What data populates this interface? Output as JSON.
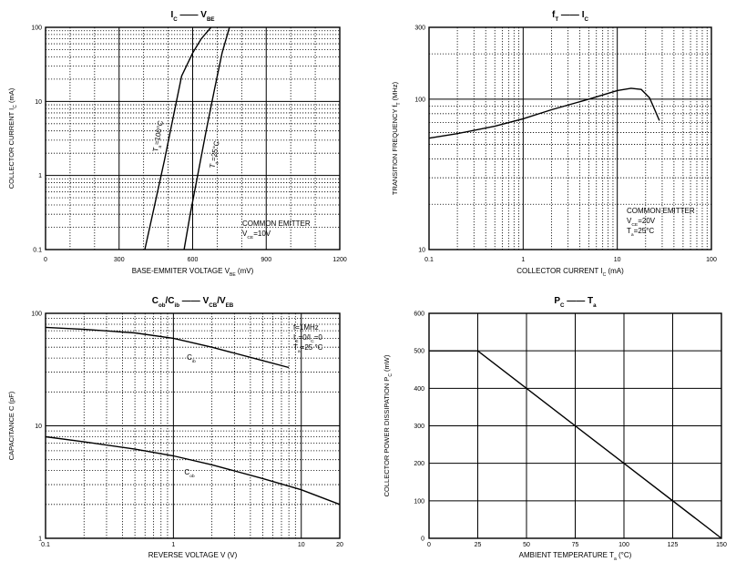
{
  "chart_data": [
    {
      "id": "ic_vbe",
      "type": "line",
      "title": [
        "I",
        "C",
        " —— V",
        "BE"
      ],
      "xlabel": "BASE-EMMITER VOLTAGE",
      "xlabel_symbol": [
        "V",
        "BE"
      ],
      "xlabel_unit": "(mV)",
      "ylabel": "COLLECTOR CURRENT",
      "ylabel_symbol": [
        "I",
        "C"
      ],
      "ylabel_unit": "(mA)",
      "x_scale": "linear",
      "y_scale": "log",
      "xlim": [
        0,
        1200
      ],
      "ylim": [
        0.1,
        100
      ],
      "x_ticks": [
        0,
        300,
        600,
        900,
        1200
      ],
      "x_tick_labels": [
        "0",
        "300",
        "600",
        "900",
        "1200"
      ],
      "y_ticks": [
        0.1,
        1,
        10,
        100
      ],
      "y_tick_labels": [
        "0.1",
        "1",
        "10",
        "100"
      ],
      "series": [
        {
          "name": "Ta=100°C",
          "label_parts": [
            "T",
            "a",
            "=100°C"
          ],
          "x": [
            405,
            445,
            485,
            520,
            555,
            600,
            635,
            675
          ],
          "y": [
            0.1,
            0.4,
            1.6,
            6,
            22,
            45,
            70,
            100
          ]
        },
        {
          "name": "Ta=25°C",
          "label_parts": [
            "T",
            "a",
            "=25°C"
          ],
          "x": [
            565,
            590,
            625,
            655,
            690,
            720,
            750
          ],
          "y": [
            0.1,
            0.3,
            1.2,
            4,
            15,
            45,
            100
          ]
        }
      ],
      "annotations": [
        {
          "lines": [
            "COMMON EMITTER",
            "V|CE|=10V"
          ]
        }
      ]
    },
    {
      "id": "ft_ic",
      "type": "line",
      "title": [
        "f",
        "T",
        " —— I",
        "C"
      ],
      "xlabel": "COLLECTOR CURRENT",
      "xlabel_symbol": [
        "I",
        "C"
      ],
      "xlabel_unit": "(mA)",
      "ylabel": "TRANSITION FREQUENCY",
      "ylabel_symbol": [
        "f",
        "T"
      ],
      "ylabel_unit": "(MHz)",
      "x_scale": "log",
      "y_scale": "log",
      "xlim": [
        0.1,
        100
      ],
      "ylim": [
        10,
        300
      ],
      "x_ticks": [
        0.1,
        1,
        10,
        100
      ],
      "x_tick_labels": [
        "0.1",
        "1",
        "10",
        "100"
      ],
      "y_ticks": [
        10,
        100,
        300
      ],
      "y_tick_labels": [
        "10",
        "100",
        "300"
      ],
      "series": [
        {
          "name": "fT",
          "x": [
            0.1,
            0.2,
            0.5,
            1,
            2,
            5,
            10,
            14,
            18,
            22,
            25,
            28
          ],
          "y": [
            55,
            59,
            66,
            74,
            85,
            100,
            114,
            118,
            116,
            102,
            85,
            72
          ]
        }
      ],
      "annotations": [
        {
          "lines": [
            "COMMON EMITTER",
            "V|CE|=20V",
            "T|a|=25°C"
          ]
        }
      ]
    },
    {
      "id": "cob_cib",
      "type": "line",
      "title": [
        "C",
        "ob",
        "/C",
        "ib",
        " —— V",
        "CB",
        "/V",
        "EB"
      ],
      "xlabel": "REVERSE  VOLTAGE  V  (V)",
      "ylabel": "CAPACITANCE",
      "ylabel_symbol": [
        "C"
      ],
      "ylabel_unit": "(pF)",
      "x_scale": "log",
      "y_scale": "log",
      "xlim": [
        0.1,
        20
      ],
      "ylim": [
        1,
        100
      ],
      "x_ticks": [
        0.1,
        1,
        10,
        20
      ],
      "x_tick_labels": [
        "0.1",
        "1",
        "10",
        "20"
      ],
      "y_ticks": [
        1,
        10,
        100
      ],
      "y_tick_labels": [
        "1",
        "10",
        "100"
      ],
      "series": [
        {
          "name": "Cib",
          "label_parts": [
            "C",
            "ib"
          ],
          "x": [
            0.1,
            0.2,
            0.5,
            1,
            2,
            5,
            8
          ],
          "y": [
            75,
            72,
            67,
            60,
            50,
            38,
            33
          ]
        },
        {
          "name": "Cob",
          "label_parts": [
            "C",
            "ob"
          ],
          "x": [
            0.1,
            0.2,
            0.5,
            1,
            2,
            5,
            10,
            20
          ],
          "y": [
            8,
            7.2,
            6.2,
            5.4,
            4.5,
            3.4,
            2.7,
            2.0
          ]
        }
      ],
      "annotations": [
        {
          "lines": [
            "f=1MHz",
            "I|E|=0/I|C|=0",
            "T|a|=25 °C"
          ]
        }
      ]
    },
    {
      "id": "pc_ta",
      "type": "line",
      "title": [
        "P",
        "C",
        " —— T",
        "a"
      ],
      "xlabel": "AMBIENT TEMPERATURE",
      "xlabel_symbol": [
        "T",
        "a"
      ],
      "xlabel_unit": "(°C)",
      "ylabel": "COLLECTOR POWER DISSIPATION",
      "ylabel_symbol": [
        "P",
        "C"
      ],
      "ylabel_unit": "(mW)",
      "x_scale": "linear",
      "y_scale": "linear",
      "xlim": [
        0,
        150
      ],
      "ylim": [
        0,
        600
      ],
      "x_ticks": [
        0,
        25,
        50,
        75,
        100,
        125,
        150
      ],
      "x_tick_labels": [
        "0",
        "25",
        "50",
        "75",
        "100",
        "125",
        "150"
      ],
      "y_ticks": [
        0,
        100,
        200,
        300,
        400,
        500,
        600
      ],
      "y_tick_labels": [
        "0",
        "100",
        "200",
        "300",
        "400",
        "500",
        "600"
      ],
      "series": [
        {
          "name": "PC",
          "x": [
            0,
            25,
            150
          ],
          "y": [
            500,
            500,
            0
          ]
        }
      ],
      "annotations": []
    }
  ]
}
